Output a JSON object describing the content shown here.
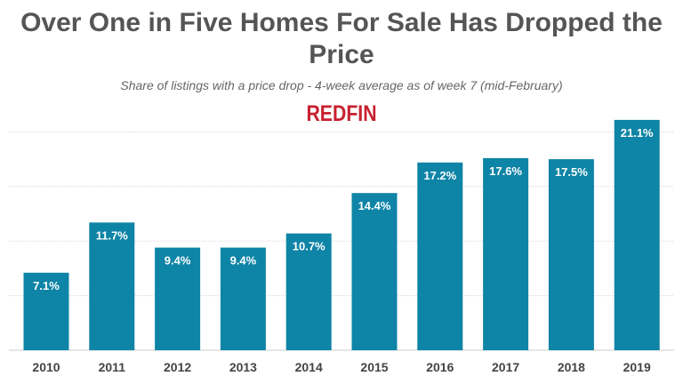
{
  "chart_data": {
    "type": "bar",
    "title": "Over One in Five Homes For Sale Has Dropped the Price",
    "subtitle": "Share of listings with a price drop - 4-week average as of week 7 (mid-February)",
    "categories": [
      "2010",
      "2011",
      "2012",
      "2013",
      "2014",
      "2015",
      "2016",
      "2017",
      "2018",
      "2019"
    ],
    "values": [
      7.1,
      11.7,
      9.4,
      9.4,
      10.7,
      14.4,
      17.2,
      17.6,
      17.5,
      21.1
    ],
    "data_labels": [
      "7.1%",
      "11.7%",
      "9.4%",
      "9.4%",
      "10.7%",
      "14.4%",
      "17.2%",
      "17.6%",
      "17.5%",
      "21.1%"
    ],
    "xlabel": "",
    "ylabel": "",
    "ylim": [
      0,
      21.1
    ],
    "gridlines": [
      5,
      10,
      15,
      20
    ],
    "grid": true,
    "y_tick_labels_shown": false,
    "bar_color": "#0e84a6"
  },
  "logo": "REDFIN"
}
